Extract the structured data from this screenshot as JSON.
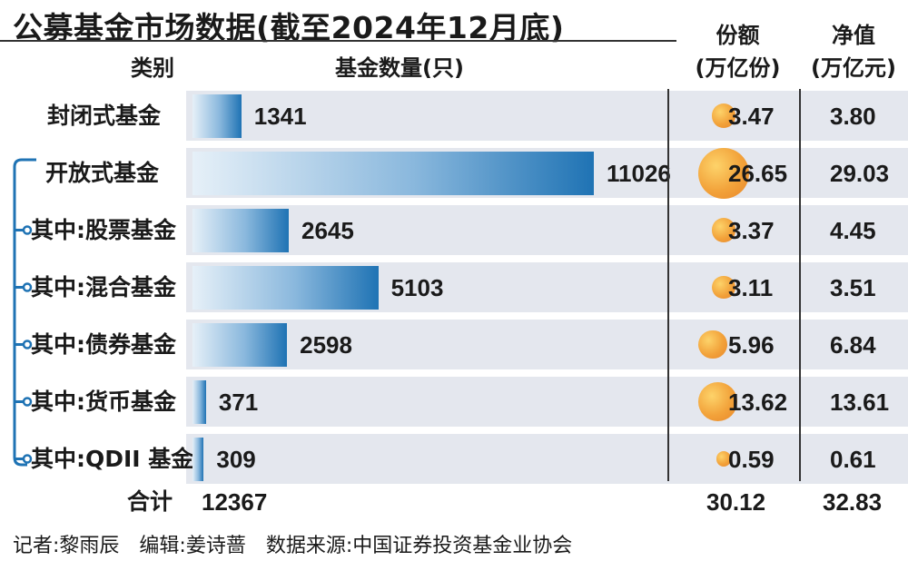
{
  "header": {
    "title": "公募基金市场数据(截至2024年12月底)",
    "col_category": "类别",
    "col_count": "基金数量(只)",
    "col_share_line1": "份额",
    "col_share_line2": "(万亿份)",
    "col_nav_line1": "净值",
    "col_nav_line2": "(万亿元)"
  },
  "chart_data": {
    "type": "table",
    "title": "公募基金市场数据(截至2024年12月底)",
    "columns": [
      "类别",
      "基金数量(只)",
      "份额(万亿份)",
      "净值(万亿元)"
    ],
    "rows": [
      {
        "category": "封闭式基金",
        "count": "1341",
        "share": "3.47",
        "nav": "3.80"
      },
      {
        "category": "开放式基金",
        "count": "11026",
        "share": "26.65",
        "nav": "29.03"
      },
      {
        "category": "其中:股票基金",
        "count": "2645",
        "share": "3.37",
        "nav": "4.45"
      },
      {
        "category": "其中:混合基金",
        "count": "5103",
        "share": "3.11",
        "nav": "3.51"
      },
      {
        "category": "其中:债券基金",
        "count": "2598",
        "share": "5.96",
        "nav": "6.84"
      },
      {
        "category": "其中:货币基金",
        "count": "371",
        "share": "13.62",
        "nav": "13.61"
      },
      {
        "category": "其中:QDII 基金",
        "count": "309",
        "share": "0.59",
        "nav": "0.61"
      }
    ],
    "total": {
      "category": "合计",
      "count": "12367",
      "share": "30.12",
      "nav": "32.83"
    }
  },
  "colors": {
    "bar": "#1f73b4",
    "bubble": "#f2a23a",
    "row_band": "#e4e7ee"
  },
  "footer": "记者:黎雨辰　编辑:姜诗蔷　数据来源:中国证券投资基金业协会"
}
